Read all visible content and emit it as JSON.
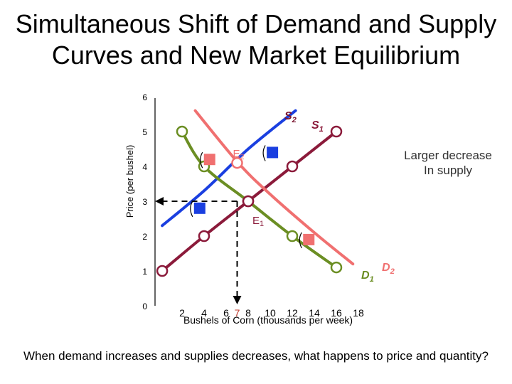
{
  "title": {
    "line1": "Simultaneous Shift of Demand and Supply",
    "line2": "Curves and New Market Equilibrium"
  },
  "question": "When demand increases and supplies decreases, what happens to price and quantity?",
  "note": {
    "line1": "Larger decrease",
    "line2": "In supply"
  },
  "chart_data": {
    "type": "line",
    "xlabel": "Bushels of Corn (thousands per week)",
    "ylabel": "Price (per bushel)",
    "xlim": [
      0,
      20
    ],
    "ylim": [
      0,
      6
    ],
    "x_ticks": [
      "2",
      "4",
      "6",
      "7",
      "8",
      "10",
      "12",
      "14",
      "16",
      "18"
    ],
    "y_ticks": [
      "0",
      "1",
      "2",
      "3",
      "4",
      "5",
      "6"
    ],
    "series": [
      {
        "name": "S1",
        "label_main": "S",
        "label_sub": "1",
        "color": "#8b1a3a",
        "points": [
          [
            0.2,
            1
          ],
          [
            4,
            2
          ],
          [
            8,
            3
          ],
          [
            12,
            4
          ],
          [
            16,
            5
          ]
        ]
      },
      {
        "name": "S2",
        "label_main": "S",
        "label_sub": "2",
        "color": "#1a3fe0",
        "points": [
          [
            0.2,
            2.3
          ],
          [
            4,
            3.3
          ],
          [
            8,
            4.5
          ],
          [
            12.3,
            5.6
          ]
        ]
      },
      {
        "name": "D1",
        "label_main": "D",
        "label_sub": "1",
        "color": "#6b8e23",
        "points": [
          [
            2,
            5
          ],
          [
            4,
            4
          ],
          [
            8,
            3
          ],
          [
            12,
            2
          ],
          [
            16,
            1.1
          ]
        ]
      },
      {
        "name": "D2",
        "label_main": "D",
        "label_sub": "2",
        "color": "#f07070",
        "points": [
          [
            3.2,
            5.6
          ],
          [
            7.1,
            4.1
          ],
          [
            10,
            3.2
          ],
          [
            14,
            2.1
          ],
          [
            17.5,
            1.2
          ]
        ]
      }
    ],
    "markers": [
      {
        "series": "S1",
        "x": 0.2,
        "y": 1
      },
      {
        "series": "S1",
        "x": 4,
        "y": 2
      },
      {
        "series": "S1",
        "x": 8,
        "y": 3
      },
      {
        "series": "S1",
        "x": 12,
        "y": 4
      },
      {
        "series": "S1",
        "x": 16,
        "y": 5
      },
      {
        "series": "D1",
        "x": 2,
        "y": 5
      },
      {
        "series": "D1",
        "x": 4,
        "y": 4
      },
      {
        "series": "D1",
        "x": 12,
        "y": 2
      },
      {
        "series": "D1",
        "x": 16,
        "y": 1.1
      }
    ],
    "equilibria": [
      {
        "label_main": "E",
        "label_sub": "1",
        "x": 8,
        "y": 3,
        "color": "#8b1a3a"
      },
      {
        "label_main": "E",
        "label_sub": "2",
        "x": 7,
        "y": 4.1,
        "color": "#f07070"
      }
    ],
    "guide": {
      "x": 7,
      "y": 3
    },
    "shift_arrows": [
      {
        "color": "#1a3fe0",
        "x": 10.2,
        "y": 4.4
      },
      {
        "color": "#1a3fe0",
        "x": 3.6,
        "y": 2.8
      },
      {
        "color": "#f07070",
        "x": 4.5,
        "y": 4.2
      },
      {
        "color": "#f07070",
        "x": 13.5,
        "y": 1.9
      }
    ]
  }
}
